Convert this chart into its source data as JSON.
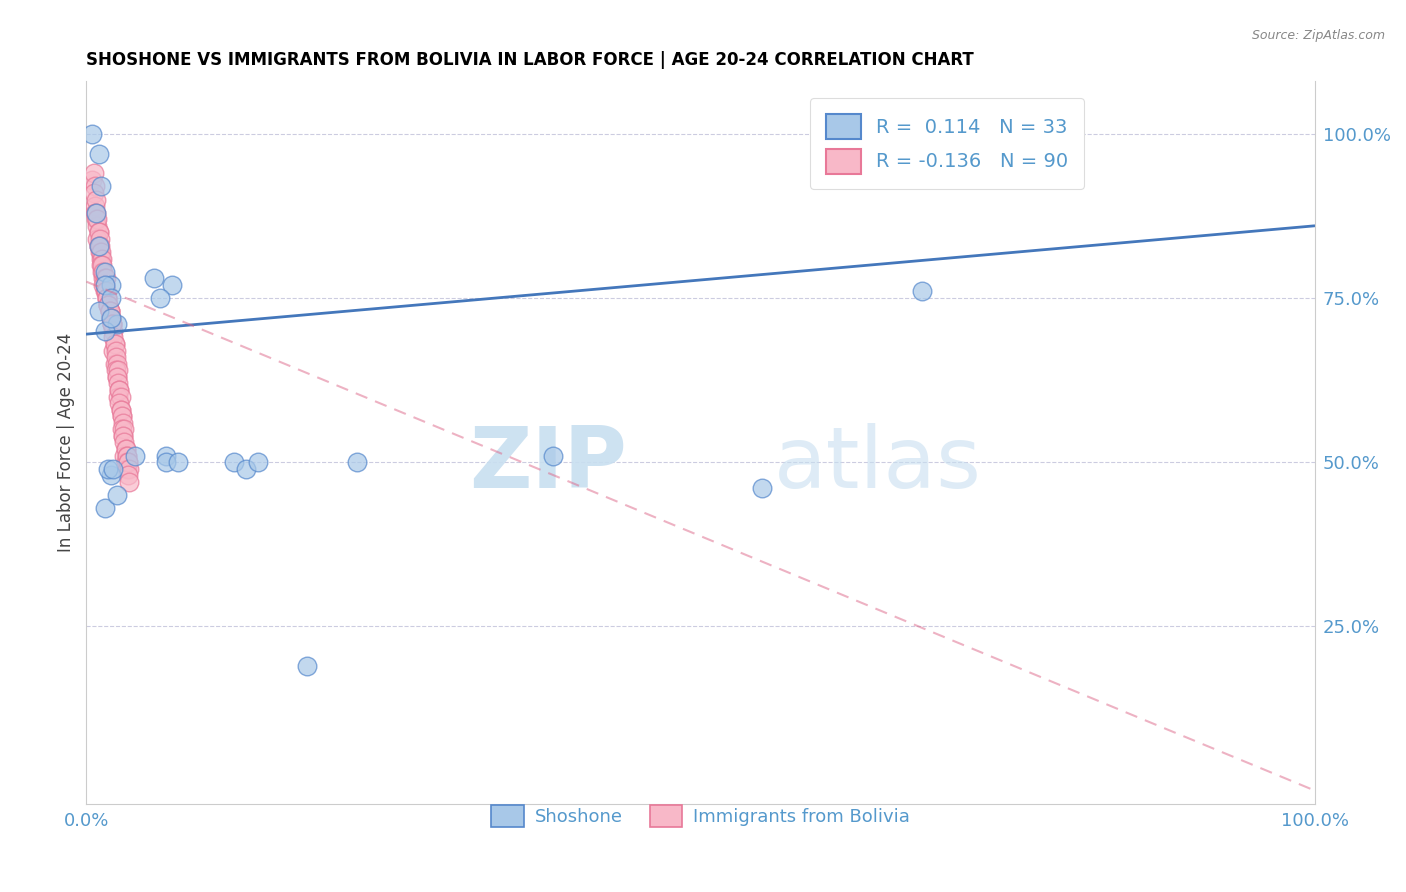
{
  "title": "SHOSHONE VS IMMIGRANTS FROM BOLIVIA IN LABOR FORCE | AGE 20-24 CORRELATION CHART",
  "source": "Source: ZipAtlas.com",
  "ylabel": "In Labor Force | Age 20-24",
  "watermark_zip": "ZIP",
  "watermark_atlas": "atlas",
  "legend_blue_r": "0.114",
  "legend_blue_n": "33",
  "legend_pink_r": "-0.136",
  "legend_pink_n": "90",
  "blue_fill": "#a8c8e8",
  "blue_edge": "#5588cc",
  "pink_fill": "#f8b8c8",
  "pink_edge": "#e87898",
  "trend_blue_color": "#4477bb",
  "trend_pink_color": "#dd6688",
  "grid_color": "#aaaacc",
  "tick_color": "#5599cc",
  "shoshone_x": [
    0.005,
    0.01,
    0.012,
    0.008,
    0.01,
    0.015,
    0.02,
    0.015,
    0.02,
    0.01,
    0.025,
    0.015,
    0.02,
    0.055,
    0.07,
    0.06,
    0.065,
    0.04,
    0.12,
    0.13,
    0.14,
    0.22,
    0.38,
    0.55,
    0.68,
    0.015,
    0.025,
    0.02,
    0.018,
    0.022,
    0.065,
    0.075,
    0.18
  ],
  "shoshone_y": [
    1.0,
    0.97,
    0.92,
    0.88,
    0.83,
    0.79,
    0.77,
    0.77,
    0.75,
    0.73,
    0.71,
    0.7,
    0.72,
    0.78,
    0.77,
    0.75,
    0.51,
    0.51,
    0.5,
    0.49,
    0.5,
    0.5,
    0.51,
    0.46,
    0.76,
    0.43,
    0.45,
    0.48,
    0.49,
    0.49,
    0.5,
    0.5,
    0.19
  ],
  "bolivia_x": [
    0.005,
    0.006,
    0.007,
    0.006,
    0.007,
    0.008,
    0.007,
    0.008,
    0.009,
    0.008,
    0.009,
    0.01,
    0.009,
    0.01,
    0.01,
    0.011,
    0.01,
    0.011,
    0.012,
    0.011,
    0.012,
    0.013,
    0.012,
    0.013,
    0.014,
    0.013,
    0.014,
    0.015,
    0.014,
    0.015,
    0.016,
    0.015,
    0.016,
    0.017,
    0.016,
    0.017,
    0.018,
    0.017,
    0.018,
    0.019,
    0.018,
    0.019,
    0.02,
    0.019,
    0.02,
    0.021,
    0.02,
    0.021,
    0.022,
    0.021,
    0.022,
    0.023,
    0.022,
    0.023,
    0.024,
    0.023,
    0.024,
    0.025,
    0.024,
    0.025,
    0.026,
    0.025,
    0.026,
    0.027,
    0.026,
    0.027,
    0.028,
    0.027,
    0.028,
    0.029,
    0.028,
    0.029,
    0.03,
    0.029,
    0.03,
    0.031,
    0.03,
    0.031,
    0.032,
    0.031,
    0.032,
    0.033,
    0.032,
    0.033,
    0.034,
    0.033,
    0.034,
    0.035,
    0.034,
    0.035
  ],
  "bolivia_y": [
    0.93,
    0.94,
    0.92,
    0.91,
    0.89,
    0.9,
    0.88,
    0.87,
    0.86,
    0.88,
    0.87,
    0.85,
    0.84,
    0.83,
    0.85,
    0.84,
    0.83,
    0.82,
    0.81,
    0.83,
    0.82,
    0.81,
    0.8,
    0.79,
    0.78,
    0.8,
    0.79,
    0.78,
    0.77,
    0.76,
    0.78,
    0.77,
    0.76,
    0.75,
    0.76,
    0.75,
    0.74,
    0.75,
    0.74,
    0.73,
    0.74,
    0.73,
    0.72,
    0.73,
    0.72,
    0.71,
    0.72,
    0.71,
    0.7,
    0.71,
    0.67,
    0.68,
    0.69,
    0.68,
    0.67,
    0.65,
    0.66,
    0.65,
    0.64,
    0.63,
    0.64,
    0.63,
    0.62,
    0.61,
    0.6,
    0.61,
    0.6,
    0.59,
    0.58,
    0.57,
    0.58,
    0.57,
    0.56,
    0.55,
    0.54,
    0.55,
    0.54,
    0.53,
    0.52,
    0.51,
    0.52,
    0.51,
    0.5,
    0.51,
    0.5,
    0.49,
    0.5,
    0.49,
    0.48,
    0.47
  ],
  "xlim": [
    0.0,
    1.0
  ],
  "ylim": [
    -0.02,
    1.08
  ],
  "blue_trend_start_y": 0.695,
  "blue_trend_end_y": 0.86,
  "pink_trend_start_y": 0.775,
  "pink_trend_end_y": 0.0
}
